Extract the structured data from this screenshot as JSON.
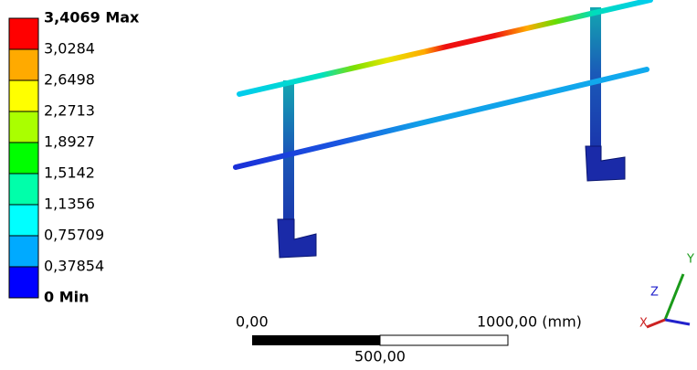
{
  "legend": {
    "items": [
      {
        "label": "3,4069 Max",
        "color": "#ff0000"
      },
      {
        "label": "3,0284",
        "color": "#ffaa00"
      },
      {
        "label": "2,6498",
        "color": "#ffff00"
      },
      {
        "label": "2,2713",
        "color": "#aaff00"
      },
      {
        "label": "1,8927",
        "color": "#00ff00"
      },
      {
        "label": "1,5142",
        "color": "#00ffaa"
      },
      {
        "label": "1,1356",
        "color": "#00ffff"
      },
      {
        "label": "0,75709",
        "color": "#00aaff"
      },
      {
        "label": "0,37854",
        "color": "#0000ff"
      },
      {
        "label": "0 Min"
      }
    ]
  },
  "scale_bar": {
    "start": "0,00",
    "end": "1000,00 (mm)",
    "middle": "500,00"
  },
  "triad": {
    "x": "X",
    "y": "Y",
    "z": "Z"
  }
}
